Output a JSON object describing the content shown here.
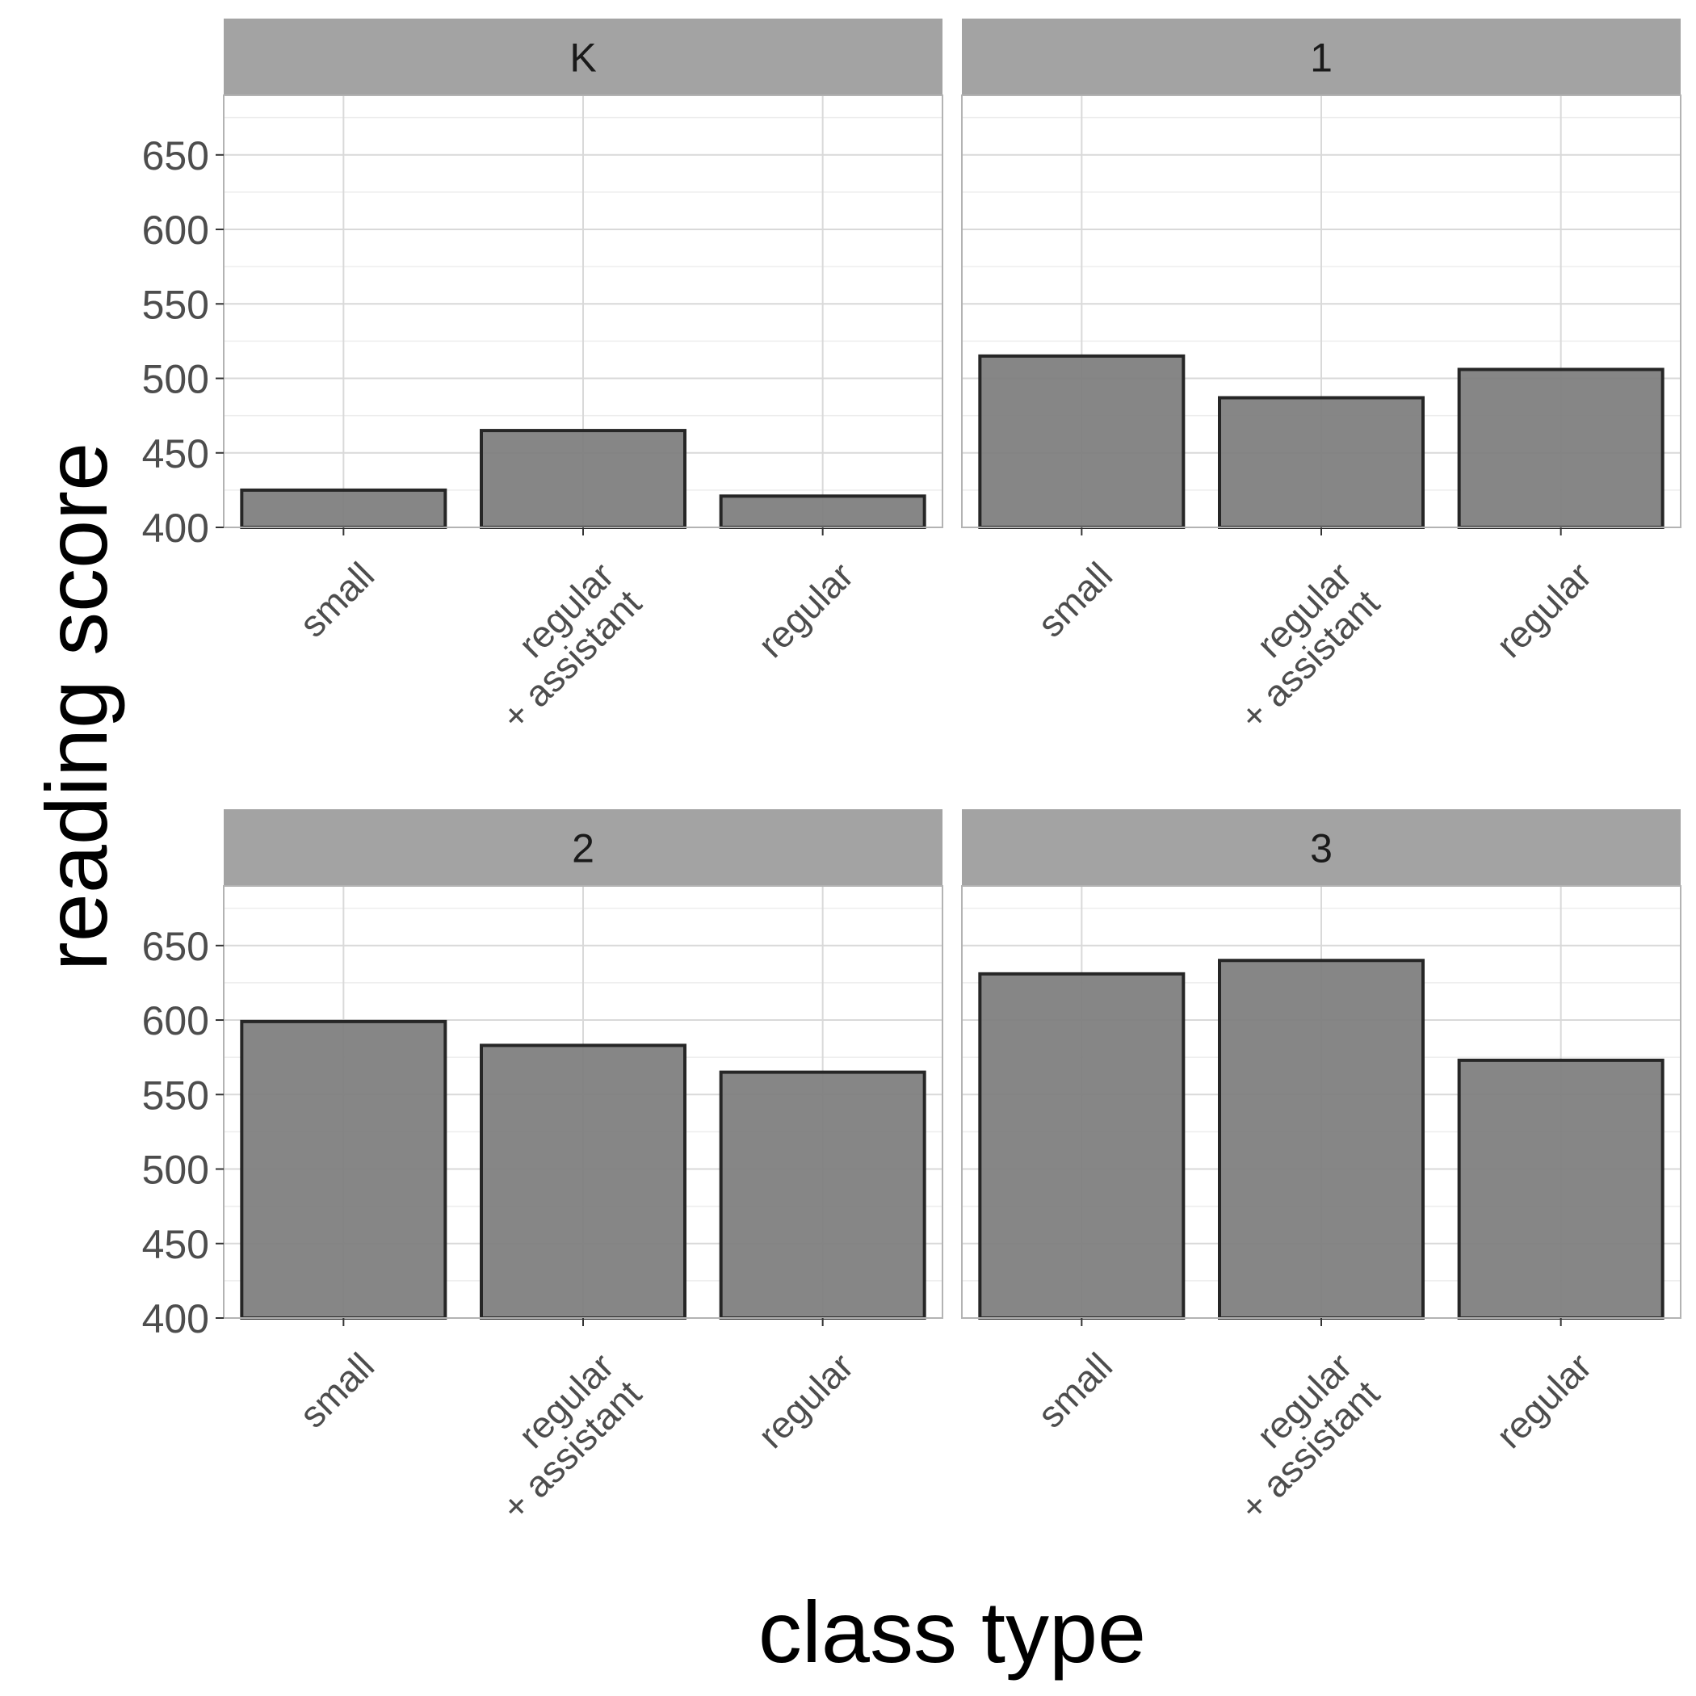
{
  "chart_data": {
    "type": "bar",
    "xlabel": "class type",
    "ylabel": "reading score",
    "ylim": [
      400,
      690
    ],
    "yticks": [
      "400",
      "450",
      "500",
      "550",
      "600",
      "650"
    ],
    "categories": [
      "small",
      "regular\n+ assistant",
      "regular"
    ],
    "grid": true,
    "colors": {
      "bar_fill": "#808080",
      "bar_stroke": "#262626",
      "strip": "#a3a3a3",
      "grid_major": "#d9d9d9",
      "grid_minor": "#ededed",
      "panel_border": "#b3b3b3"
    },
    "panels": [
      {
        "label": "K",
        "values": [
          425,
          465,
          421
        ]
      },
      {
        "label": "1",
        "values": [
          515,
          487,
          506
        ]
      },
      {
        "label": "2",
        "values": [
          599,
          583,
          565
        ]
      },
      {
        "label": "3",
        "values": [
          631,
          640,
          573
        ]
      }
    ]
  }
}
